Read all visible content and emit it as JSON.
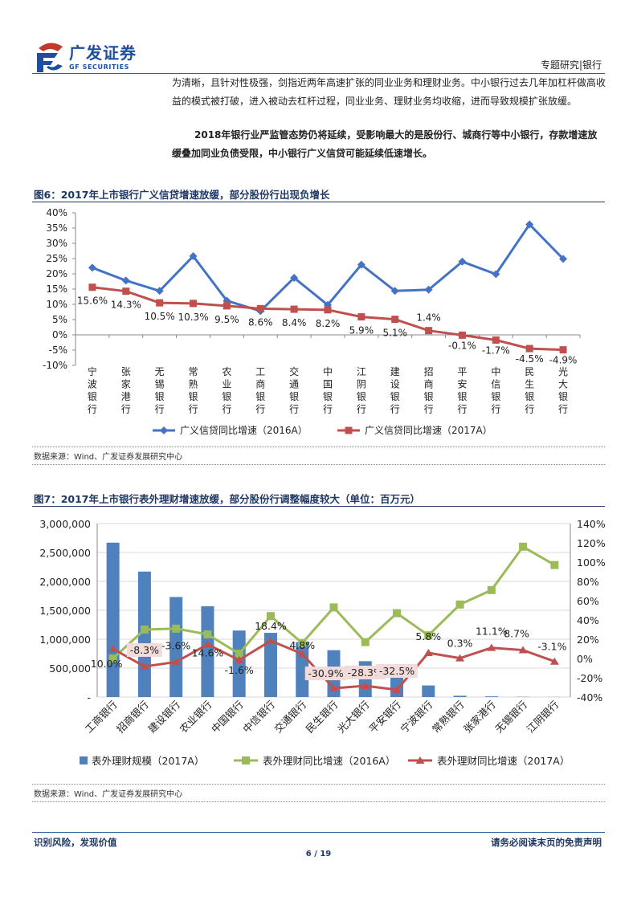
{
  "header": {
    "logo_cn": "广发证券",
    "logo_en": "GF SECURITIES",
    "section": "专题研究|银行"
  },
  "body_text": {
    "para1": "为清晰，且针对性极强，剑指近两年高速扩张的同业业务和理财业务。中小银行过去几年加杠杆做高收益的模式被打破，进入被动去杠杆过程，同业业务、理财业务均收缩，进而导致规模扩张放缓。",
    "para2": "2018年银行业严监管态势仍将延续，受影响最大的是股份行、城商行等中小银行，存款增速放缓叠加同业负债受限，中小银行广义信贷可能延续低速增长。"
  },
  "colors": {
    "blue": "#4472c4",
    "red": "#c0504d",
    "green": "#9bbb59",
    "bar": "#4f81bd",
    "brand": "#1d4f9e",
    "label_bg": "#f2dcdb"
  },
  "fig6": {
    "title": "图6：2017年上市银行广义信贷增速放缓，部分股份行出现负增长",
    "source": "数据来源：Wind、广发证券发展研究中心"
  },
  "fig7": {
    "title": "图7：2017年上市银行表外理财增速放缓，部分股份行调整幅度较大（单位：百万元）",
    "source": "数据来源：Wind、广发证券发展研究中心"
  },
  "chart_data": [
    {
      "type": "line",
      "categories": [
        "宁波银行",
        "张家港行",
        "无锡银行",
        "常熟银行",
        "农业银行",
        "工商银行",
        "交通银行",
        "中国银行",
        "江阴银行",
        "建设银行",
        "招商银行",
        "平安银行",
        "中信银行",
        "民生银行",
        "光大银行"
      ],
      "series": [
        {
          "name": "广义信贷同比增速（2016A）",
          "values": [
            22.0,
            17.8,
            14.4,
            25.8,
            11.2,
            7.8,
            18.7,
            9.8,
            23.0,
            14.4,
            14.8,
            24.0,
            19.9,
            36.2,
            24.9
          ]
        },
        {
          "name": "广义信贷同比增速（2017A）",
          "values": [
            15.6,
            14.3,
            10.5,
            10.3,
            9.5,
            8.6,
            8.4,
            8.2,
            5.9,
            5.1,
            1.4,
            -0.1,
            -1.7,
            -4.5,
            -4.9
          ]
        }
      ],
      "data_labels": [
        "15.6%",
        "14.3%",
        "10.5%",
        "10.3%",
        "9.5%",
        "8.6%",
        "8.4%",
        "8.2%",
        "5.9%",
        "5.1%",
        "1.4%",
        "-0.1%",
        "-1.7%",
        "-4.5%",
        "-4.9%"
      ],
      "y_ticks": [
        "40%",
        "35%",
        "30%",
        "25%",
        "20%",
        "15%",
        "10%",
        "5%",
        "0%",
        "-5%",
        "-10%"
      ],
      "ylim": [
        -10,
        40
      ],
      "grid": false,
      "legend": "bottom"
    },
    {
      "type": "bar",
      "categories": [
        "工商银行",
        "招商银行",
        "建设银行",
        "农业银行",
        "中国银行",
        "中信银行",
        "交通银行",
        "民生银行",
        "光大银行",
        "平安银行",
        "宁波银行",
        "常熟银行",
        "张家港行",
        "无锡银行",
        "江阴银行"
      ],
      "series": [
        {
          "name": "表外理财规模（2017A）",
          "axis": "left",
          "type": "bar",
          "values": [
            2670000,
            2170000,
            1730000,
            1570000,
            1150000,
            1110000,
            950000,
            810000,
            620000,
            560000,
            200000,
            22000,
            12000,
            4000,
            2000
          ]
        },
        {
          "name": "表外理财同比增速（2016A）",
          "axis": "right",
          "type": "line",
          "values": [
            0,
            30,
            31,
            25,
            5,
            44,
            16,
            53,
            17,
            47,
            24,
            56,
            71,
            116,
            97
          ]
        },
        {
          "name": "表外理财同比增速（2017A）",
          "axis": "right",
          "type": "line",
          "values": [
            10.0,
            -8.3,
            -3.6,
            14.6,
            -1.6,
            18.4,
            4.8,
            -30.9,
            -28.3,
            -32.5,
            5.8,
            0.3,
            11.1,
            8.7,
            -3.1
          ]
        }
      ],
      "data_labels": [
        "10.0%",
        "-8.3%",
        "-3.6%",
        "14.6%",
        "-1.6%",
        "18.4%",
        "4.8%",
        "-30.9%",
        "-28.3%",
        "-32.5%",
        "5.8%",
        "0.3%",
        "11.1%",
        "8.7%",
        "-3.1%"
      ],
      "y_left_ticks": [
        "3,000,000",
        "2,500,000",
        "2,000,000",
        "1,500,000",
        "1,000,000",
        "500,000",
        "-"
      ],
      "y_right_ticks": [
        "140%",
        "120%",
        "100%",
        "80%",
        "60%",
        "40%",
        "20%",
        "0%",
        "-20%",
        "-40%"
      ],
      "ylim_left": [
        0,
        3000000
      ],
      "ylim_right": [
        -40,
        140
      ],
      "grid": true,
      "legend": "bottom"
    }
  ],
  "footer": {
    "left": "识别风险，发现价值",
    "right": "请务必阅读末页的免责声明",
    "page": "6 / 19"
  }
}
